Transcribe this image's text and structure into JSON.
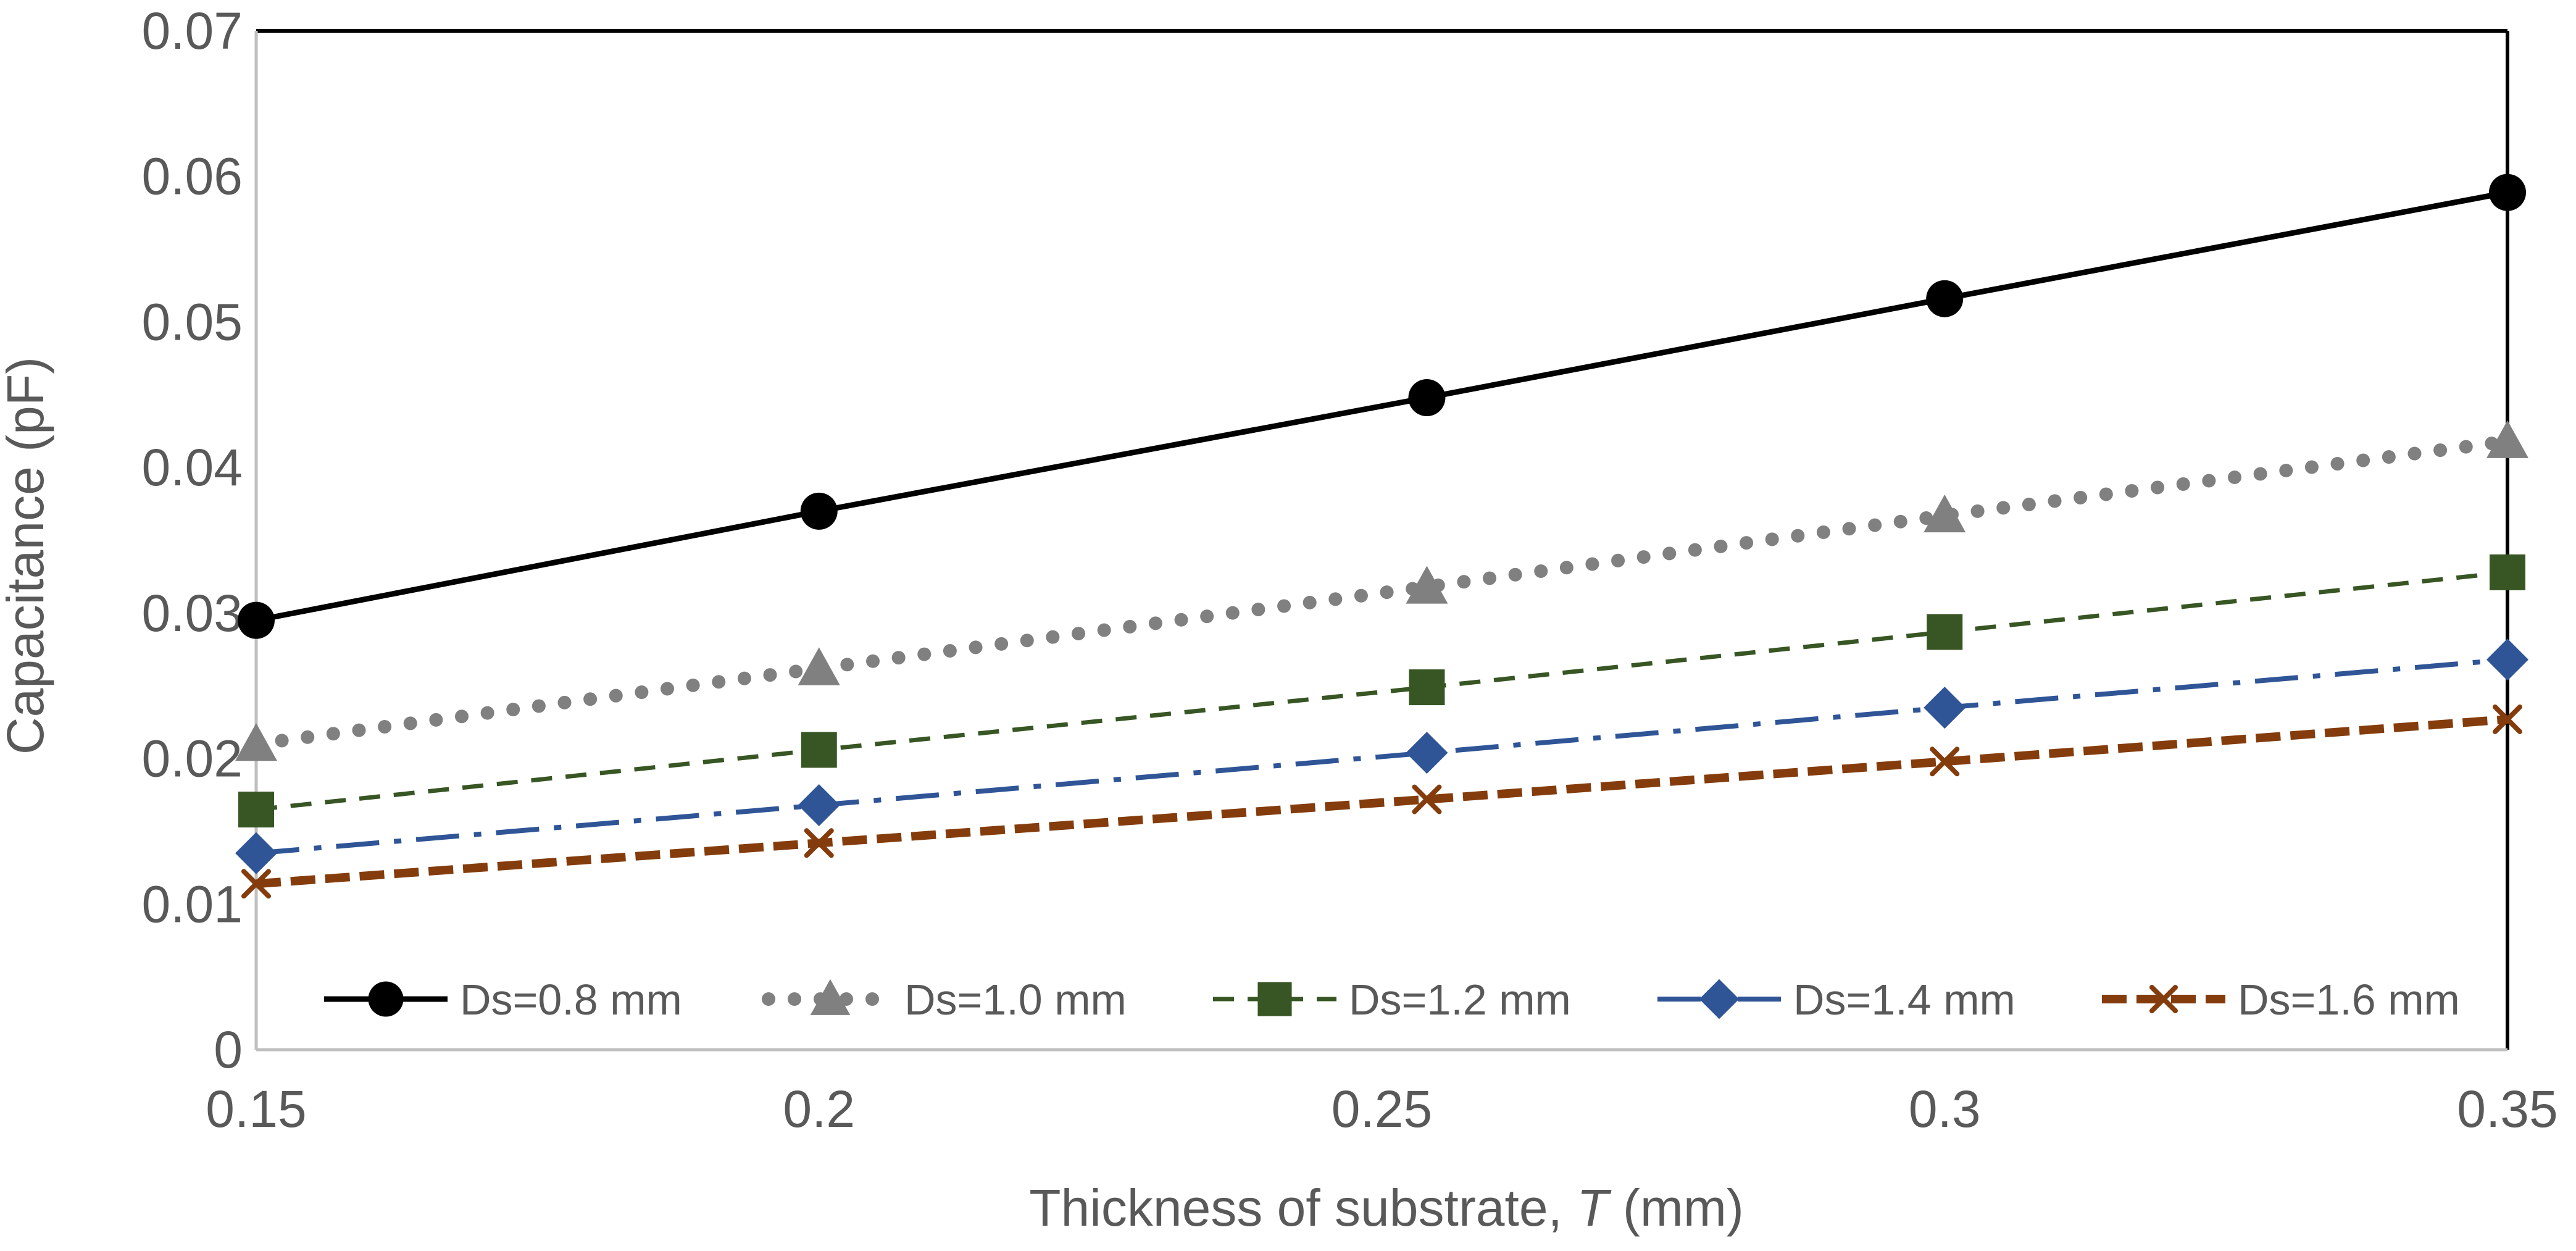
{
  "chart_data": {
    "type": "line",
    "title": "",
    "xlabel": "Thickness of substrate, T (mm)",
    "xlabel_parts": {
      "before": "Thickness of substrate, ",
      "italic": "T",
      "after": " (mm)"
    },
    "ylabel": "Capacitance (pF)",
    "xlim": [
      0.15,
      0.35
    ],
    "ylim": [
      0,
      0.07
    ],
    "x_ticks": [
      {
        "value": 0.15,
        "label": "0.15"
      },
      {
        "value": 0.2,
        "label": "0.2"
      },
      {
        "value": 0.25,
        "label": "0.25"
      },
      {
        "value": 0.3,
        "label": "0.3"
      },
      {
        "value": 0.35,
        "label": "0.35"
      }
    ],
    "y_ticks": [
      {
        "value": 0,
        "label": "0"
      },
      {
        "value": 0.01,
        "label": "0.01"
      },
      {
        "value": 0.02,
        "label": "0.02"
      },
      {
        "value": 0.03,
        "label": "0.03"
      },
      {
        "value": 0.04,
        "label": "0.04"
      },
      {
        "value": 0.05,
        "label": "0.05"
      },
      {
        "value": 0.06,
        "label": "0.06"
      },
      {
        "value": 0.07,
        "label": "0.07"
      }
    ],
    "grid": false,
    "legend_position": "bottom-inside",
    "x": [
      0.15,
      0.2,
      0.254,
      0.3,
      0.35
    ],
    "series": [
      {
        "name": "Ds=0.8 mm",
        "values": [
          0.0295,
          0.037,
          0.0448,
          0.0516,
          0.0589
        ],
        "color": "#000000",
        "marker": "circle",
        "dash": "solid"
      },
      {
        "name": "Ds=1.0 mm",
        "values": [
          0.021,
          0.0262,
          0.0318,
          0.0367,
          0.0418
        ],
        "color": "#808080",
        "marker": "triangle",
        "dash": "dot"
      },
      {
        "name": "Ds=1.2 mm",
        "values": [
          0.0165,
          0.0206,
          0.0249,
          0.0287,
          0.0328
        ],
        "color": "#375623",
        "marker": "square",
        "dash": "dash"
      },
      {
        "name": "Ds=1.4 mm",
        "values": [
          0.0135,
          0.0168,
          0.0204,
          0.0235,
          0.0268
        ],
        "color": "#2F5597",
        "marker": "diamond",
        "dash": "dashdot"
      },
      {
        "name": "Ds=1.6 mm",
        "values": [
          0.0114,
          0.0142,
          0.0172,
          0.0198,
          0.0227
        ],
        "color": "#843C0C",
        "marker": "x",
        "dash": "dashbold"
      }
    ]
  }
}
